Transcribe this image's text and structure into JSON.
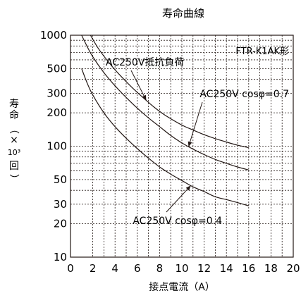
{
  "chart_data": {
    "type": "line",
    "title": "寿命曲線",
    "model": "FTR-K1AK形",
    "xlabel": "接点電流（A）",
    "ylabel_chars": [
      "寿",
      "命",
      "（",
      "×",
      "10³",
      "回",
      "）"
    ],
    "xscale": "linear",
    "yscale": "log",
    "xlim": [
      0,
      20
    ],
    "ylim": [
      10,
      1000
    ],
    "x_ticks": [
      0,
      2,
      4,
      6,
      8,
      10,
      12,
      14,
      16,
      18,
      20
    ],
    "x_tick_labels": [
      "0",
      "2",
      "4",
      "6",
      "8",
      "10",
      "12",
      "14",
      "16",
      "18",
      "20"
    ],
    "y_ticks": [
      10,
      20,
      30,
      50,
      100,
      200,
      300,
      500,
      1000
    ],
    "y_tick_labels": [
      "10",
      "20",
      "30",
      "50",
      "100",
      "200",
      "300",
      "500",
      "1000"
    ],
    "grid": true,
    "series": [
      {
        "name": "AC250V抵抗負荷",
        "x": [
          1.8,
          2.5,
          3.5,
          4.5,
          5.5,
          6.5,
          7.5,
          8.5,
          10,
          11,
          12,
          13,
          14,
          15,
          16
        ],
        "y": [
          1000,
          760,
          560,
          430,
          340,
          275,
          225,
          190,
          155,
          140,
          127,
          117,
          109,
          102,
          97
        ]
      },
      {
        "name": "AC250V cosφ=0.7",
        "x": [
          1,
          1.5,
          2,
          3,
          4,
          5,
          6,
          7,
          8,
          9,
          10,
          11,
          12,
          13,
          14,
          15,
          16
        ],
        "y": [
          1000,
          790,
          640,
          460,
          350,
          275,
          220,
          180,
          150,
          125,
          107,
          94,
          84,
          76,
          70,
          65,
          61
        ]
      },
      {
        "name": "AC250V cosφ=0.4",
        "x": [
          1,
          1.5,
          2,
          3,
          4,
          5,
          6,
          7,
          8,
          9,
          10,
          11,
          12,
          13,
          14,
          15,
          16
        ],
        "y": [
          500,
          370,
          290,
          200,
          150,
          118,
          95,
          78,
          65,
          56,
          49,
          43,
          39,
          35,
          33,
          31,
          29
        ]
      }
    ],
    "annotations": [
      {
        "text": "AC250V抵抗負荷",
        "series": 0,
        "at_x": 6.8
      },
      {
        "text": "AC250V cosφ=0.7",
        "series": 1,
        "at_x": 10.6
      },
      {
        "text": "AC250V cosφ=0.4",
        "series": 2,
        "at_x": 10.8
      }
    ]
  }
}
